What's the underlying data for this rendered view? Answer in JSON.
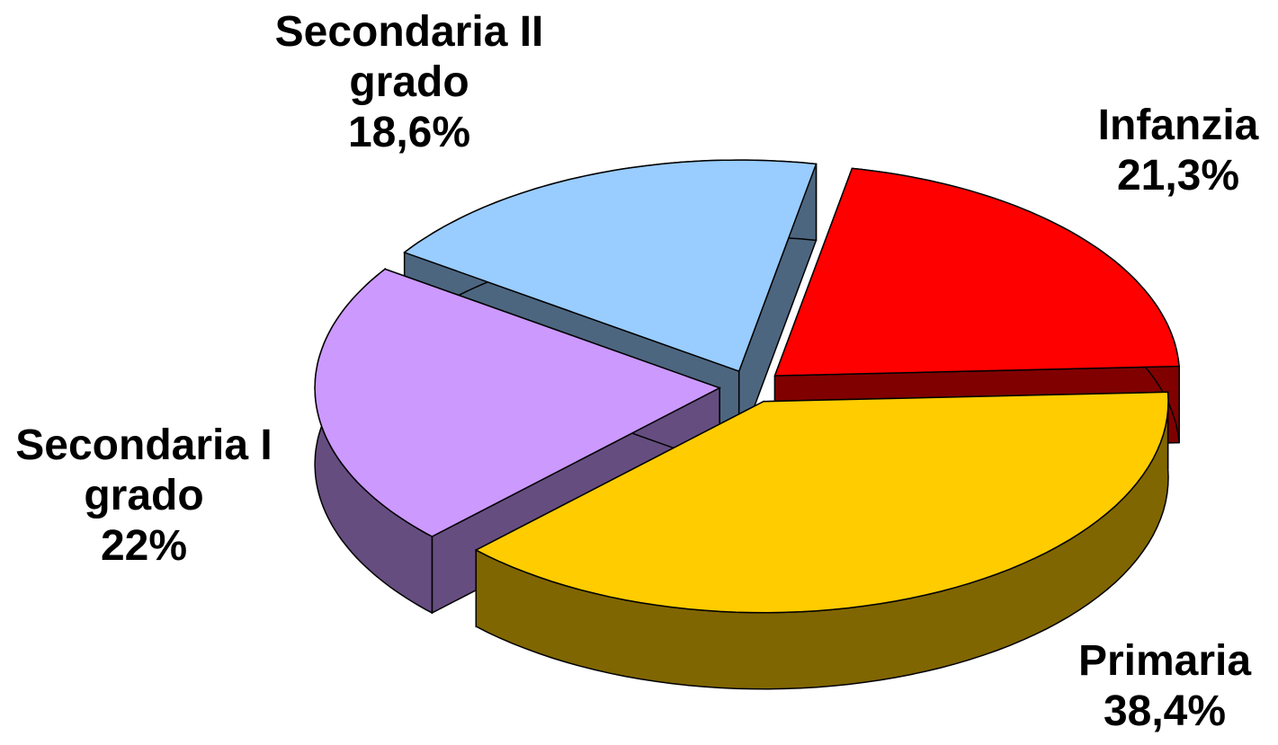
{
  "chart_data": {
    "type": "pie",
    "categories": [
      "Infanzia",
      "Primaria",
      "Secondaria I grado",
      "Secondaria II grado"
    ],
    "values": [
      21.3,
      38.4,
      22,
      18.6
    ],
    "value_labels": [
      "21,3%",
      "38,4%",
      "22%",
      "18,6%"
    ],
    "colors": [
      "#ff0000",
      "#ffcc00",
      "#cc99ff",
      "#99ccff"
    ]
  }
}
